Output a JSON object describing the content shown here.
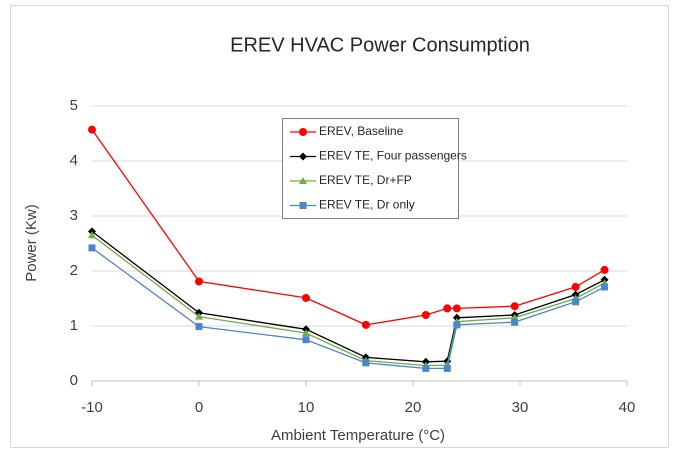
{
  "chart_data": {
    "type": "line",
    "title": "EREV HVAC Power Consumption",
    "x_label": "Ambient Temperature (°C)",
    "y_label": "Power (Kw)",
    "x": [
      -10,
      0,
      10,
      15.6,
      21.2,
      23.2,
      24.1,
      29.5,
      35.2,
      37.9
    ],
    "series": [
      {
        "name": "EREV, Baseline",
        "color": "#ff0000",
        "marker": "circle",
        "values": [
          4.57,
          1.81,
          1.51,
          1.02,
          1.2,
          1.32,
          1.32,
          1.36,
          1.71,
          2.02
        ]
      },
      {
        "name": "EREV TE, Four passengers",
        "color": "#000000",
        "marker": "diamond",
        "values": [
          2.72,
          1.24,
          0.94,
          0.43,
          0.35,
          0.36,
          1.15,
          1.2,
          1.57,
          1.84
        ]
      },
      {
        "name": "EREV TE, Dr+FP",
        "color": "#70ad47",
        "marker": "triangle",
        "values": [
          2.65,
          1.17,
          0.87,
          0.37,
          0.28,
          0.29,
          1.08,
          1.15,
          1.5,
          1.78
        ]
      },
      {
        "name": "EREV TE, Dr only",
        "color": "#4a86c8",
        "marker": "square",
        "values": [
          2.42,
          0.99,
          0.75,
          0.33,
          0.23,
          0.23,
          1.02,
          1.07,
          1.44,
          1.71
        ]
      }
    ],
    "xlim": [
      -10,
      40
    ],
    "xticks": [
      -10,
      0,
      10,
      20,
      30,
      40
    ],
    "ylim": [
      0,
      5
    ],
    "yticks": [
      0,
      1,
      2,
      3,
      4,
      5
    ],
    "grid": true,
    "legend": "top-center"
  }
}
